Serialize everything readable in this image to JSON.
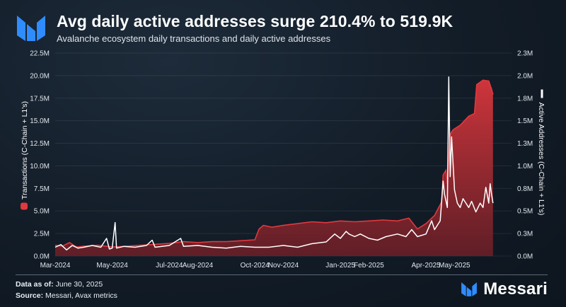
{
  "header": {
    "title": "Avg daily active addresses surge 210.4% to 519.9K",
    "subtitle": "Avalanche ecosystem daily transactions and daily active addresses"
  },
  "footer": {
    "data_as_of_label": "Data as of:",
    "data_as_of_value": "June 30, 2025",
    "source_label": "Source:",
    "source_value": "Messari, Avax metrics",
    "brand": "Messari"
  },
  "colors": {
    "transactions": "#e0393e",
    "addresses": "#ffffff",
    "brand_blue": "#2f8cff"
  },
  "chart_data": {
    "type": "area",
    "title": "Avg daily active addresses surge 210.4% to 519.9K",
    "x_range": [
      "2024-03-01",
      "2025-06-30"
    ],
    "xticks": [
      "Mar-2024",
      "May-2024",
      "Jul-2024",
      "Aug-2024",
      "Oct-2024",
      "Nov-2024",
      "Jan-2025",
      "Feb-2025",
      "Apr-2025",
      "May-2025"
    ],
    "xtick_months": [
      0,
      2,
      4,
      5,
      7,
      8,
      10,
      11,
      13,
      14
    ],
    "y_left": {
      "label": "Transactions (C-Chain + L1's)",
      "ylim": [
        0,
        22500000
      ],
      "ticks": [
        "0.0M",
        "2.5M",
        "5.0M",
        "7.5M",
        "10.0M",
        "12.5M",
        "15.0M",
        "17.5M",
        "20.0M",
        "22.5M"
      ]
    },
    "y_right": {
      "label": "Active Addresses (C-Chain + L1's)",
      "ylim": [
        0,
        2300000
      ],
      "ticks": [
        "0.0M",
        "0.3M",
        "0.5M",
        "0.8M",
        "1.0M",
        "1.3M",
        "1.5M",
        "1.8M",
        "2.0M",
        "2.3M"
      ]
    },
    "series": [
      {
        "name": "Transactions (C-Chain + L1's)",
        "type": "area",
        "axis": "left",
        "points": [
          [
            0,
            1.2
          ],
          [
            0.25,
            1.1
          ],
          [
            0.5,
            1.5
          ],
          [
            0.75,
            1.0
          ],
          [
            1,
            1.1
          ],
          [
            1.5,
            1.2
          ],
          [
            2,
            1.0
          ],
          [
            2.5,
            1.1
          ],
          [
            3,
            1.2
          ],
          [
            3.5,
            1.3
          ],
          [
            4,
            1.4
          ],
          [
            4.5,
            1.6
          ],
          [
            5,
            1.5
          ],
          [
            5.5,
            1.6
          ],
          [
            6,
            1.6
          ],
          [
            6.5,
            1.7
          ],
          [
            7,
            1.8
          ],
          [
            7.15,
            3.0
          ],
          [
            7.3,
            3.4
          ],
          [
            7.6,
            3.2
          ],
          [
            8,
            3.4
          ],
          [
            8.5,
            3.6
          ],
          [
            9,
            3.8
          ],
          [
            9.5,
            3.7
          ],
          [
            10,
            3.9
          ],
          [
            10.5,
            3.8
          ],
          [
            11,
            3.9
          ],
          [
            11.5,
            4.0
          ],
          [
            12,
            3.9
          ],
          [
            12.4,
            4.2
          ],
          [
            12.7,
            3.0
          ],
          [
            13,
            3.6
          ],
          [
            13.3,
            4.5
          ],
          [
            13.55,
            6.0
          ],
          [
            13.6,
            9.0
          ],
          [
            13.7,
            9.5
          ],
          [
            13.75,
            8.0
          ],
          [
            13.85,
            13.5
          ],
          [
            13.95,
            14.0
          ],
          [
            14.2,
            14.5
          ],
          [
            14.5,
            15.5
          ],
          [
            14.7,
            15.8
          ],
          [
            14.78,
            19.0
          ],
          [
            15.0,
            19.5
          ],
          [
            15.2,
            19.4
          ],
          [
            15.3,
            18.5
          ],
          [
            15.35,
            17.9
          ]
        ]
      },
      {
        "name": "Active Addresses (C-Chain + L1's)",
        "type": "line",
        "axis": "right",
        "points": [
          [
            0,
            0.1
          ],
          [
            0.2,
            0.13
          ],
          [
            0.4,
            0.07
          ],
          [
            0.6,
            0.12
          ],
          [
            0.8,
            0.09
          ],
          [
            1,
            0.1
          ],
          [
            1.3,
            0.12
          ],
          [
            1.6,
            0.1
          ],
          [
            1.8,
            0.2
          ],
          [
            1.9,
            0.08
          ],
          [
            2,
            0.09
          ],
          [
            2.1,
            0.38
          ],
          [
            2.15,
            0.09
          ],
          [
            2.4,
            0.11
          ],
          [
            2.8,
            0.1
          ],
          [
            3.2,
            0.12
          ],
          [
            3.4,
            0.18
          ],
          [
            3.5,
            0.1
          ],
          [
            4,
            0.12
          ],
          [
            4.4,
            0.2
          ],
          [
            4.5,
            0.11
          ],
          [
            5,
            0.12
          ],
          [
            5.5,
            0.1
          ],
          [
            6,
            0.09
          ],
          [
            6.5,
            0.11
          ],
          [
            7,
            0.1
          ],
          [
            7.5,
            0.1
          ],
          [
            8,
            0.12
          ],
          [
            8.5,
            0.1
          ],
          [
            9,
            0.14
          ],
          [
            9.5,
            0.16
          ],
          [
            9.8,
            0.25
          ],
          [
            10,
            0.2
          ],
          [
            10.2,
            0.28
          ],
          [
            10.3,
            0.25
          ],
          [
            10.5,
            0.22
          ],
          [
            10.7,
            0.25
          ],
          [
            11,
            0.2
          ],
          [
            11.3,
            0.18
          ],
          [
            11.6,
            0.22
          ],
          [
            12,
            0.25
          ],
          [
            12.3,
            0.22
          ],
          [
            12.5,
            0.3
          ],
          [
            12.7,
            0.22
          ],
          [
            13,
            0.25
          ],
          [
            13.2,
            0.4
          ],
          [
            13.3,
            0.3
          ],
          [
            13.5,
            0.4
          ],
          [
            13.6,
            0.85
          ],
          [
            13.65,
            0.7
          ],
          [
            13.75,
            0.55
          ],
          [
            13.8,
            2.03
          ],
          [
            13.85,
            0.9
          ],
          [
            13.9,
            1.35
          ],
          [
            14.0,
            0.75
          ],
          [
            14.1,
            0.6
          ],
          [
            14.2,
            0.55
          ],
          [
            14.3,
            0.65
          ],
          [
            14.5,
            0.55
          ],
          [
            14.6,
            0.62
          ],
          [
            14.75,
            0.5
          ],
          [
            14.9,
            0.6
          ],
          [
            15.0,
            0.55
          ],
          [
            15.1,
            0.78
          ],
          [
            15.2,
            0.6
          ],
          [
            15.25,
            0.82
          ],
          [
            15.3,
            0.7
          ],
          [
            15.35,
            0.6
          ]
        ]
      }
    ]
  }
}
